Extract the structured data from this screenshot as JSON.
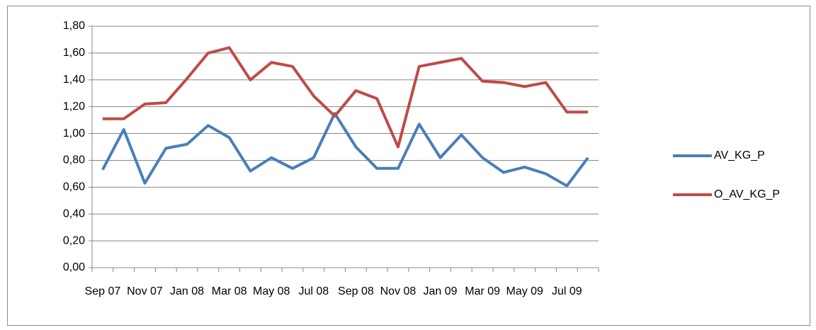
{
  "chart_data": {
    "type": "line",
    "categories": [
      "Sep 07",
      null,
      "Nov 07",
      null,
      "Jan 08",
      null,
      "Mar 08",
      null,
      "May 08",
      null,
      "Jul 08",
      null,
      "Sep 08",
      null,
      "Nov 08",
      null,
      "Jan 09",
      null,
      "Mar 09",
      null,
      "May 09",
      null,
      "Jul 09",
      null
    ],
    "series": [
      {
        "name": "AV_KG_P",
        "color": "#4a7ebb",
        "values": [
          0.73,
          1.03,
          0.63,
          0.89,
          0.92,
          1.06,
          0.97,
          0.72,
          0.82,
          0.74,
          0.82,
          1.15,
          0.9,
          0.74,
          0.74,
          1.07,
          0.82,
          0.99,
          0.82,
          0.71,
          0.75,
          0.7,
          0.61,
          0.82
        ]
      },
      {
        "name": "O_AV_KG_P",
        "color": "#be4b48",
        "values": [
          1.11,
          1.11,
          1.22,
          1.23,
          1.41,
          1.6,
          1.64,
          1.4,
          1.53,
          1.5,
          1.28,
          1.13,
          1.32,
          1.26,
          0.9,
          1.5,
          1.53,
          1.56,
          1.39,
          1.38,
          1.35,
          1.38,
          1.16,
          1.16
        ]
      }
    ],
    "ylim": [
      0,
      1.8
    ],
    "yticks": [
      {
        "value": 0,
        "label": "0,00"
      },
      {
        "value": 0.2,
        "label": "0,20"
      },
      {
        "value": 0.4,
        "label": "0,40"
      },
      {
        "value": 0.6,
        "label": "0,60"
      },
      {
        "value": 0.8,
        "label": "0,80"
      },
      {
        "value": 1.0,
        "label": "1,00"
      },
      {
        "value": 1.2,
        "label": "1,20"
      },
      {
        "value": 1.4,
        "label": "1,40"
      },
      {
        "value": 1.6,
        "label": "1,60"
      },
      {
        "value": 1.8,
        "label": "1,80"
      }
    ],
    "grid": true,
    "legend": "right"
  }
}
